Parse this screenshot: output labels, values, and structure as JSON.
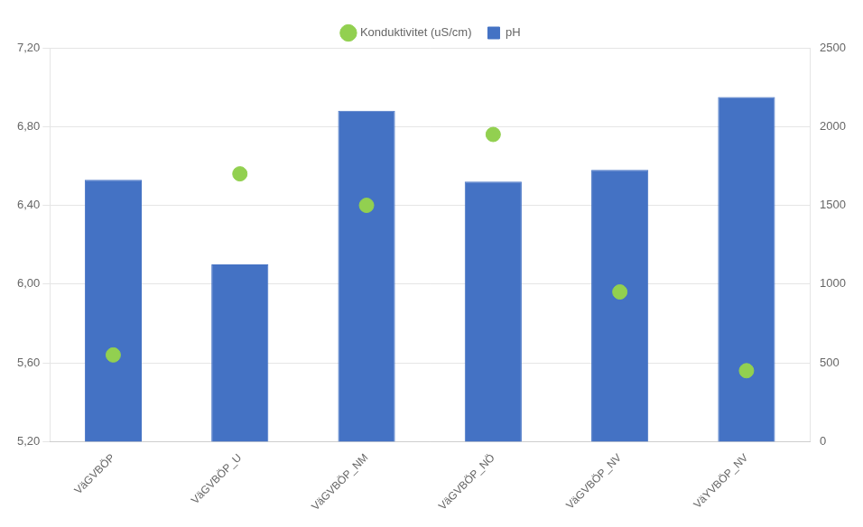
{
  "chart_data": {
    "type": "bar",
    "categories": [
      "VäGVBÖP",
      "VäGVBÖP_U",
      "VäGVBÖP_NM",
      "VäGVBÖP_NÖ",
      "VäGVBÖP_NV",
      "VäYVBÖP_NV"
    ],
    "series": [
      {
        "name": "pH",
        "type": "bar",
        "color": "#4472C4",
        "values": [
          6.53,
          6.1,
          6.88,
          6.52,
          6.58,
          6.95
        ]
      },
      {
        "name": "Konduktivitet (uS/cm)",
        "type": "scatter",
        "marker": "circle",
        "color": "#92D050",
        "axis": "y2",
        "values": [
          550,
          1700,
          1500,
          1950,
          950,
          450
        ]
      }
    ],
    "ylim": [
      5.2,
      7.2
    ],
    "yticks": [
      {
        "value": 5.2,
        "label": "5,20"
      },
      {
        "value": 5.6,
        "label": "5,60"
      },
      {
        "value": 6.0,
        "label": "6,00"
      },
      {
        "value": 6.4,
        "label": "6,40"
      },
      {
        "value": 6.8,
        "label": "6,80"
      },
      {
        "value": 7.2,
        "label": "7,20"
      }
    ],
    "y2lim": [
      0,
      2500
    ],
    "y2ticks": [
      0,
      500,
      1000,
      1500,
      2000,
      2500
    ],
    "grid": true,
    "legend": "top"
  }
}
